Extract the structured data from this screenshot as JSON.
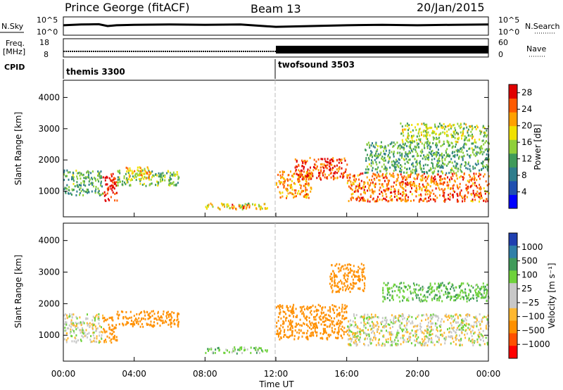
{
  "header": {
    "station": "Prince George (fitACF)",
    "beam": "Beam 13",
    "date": "20/Jan/2015"
  },
  "chart_data": [
    {
      "type": "line",
      "name": "sky-noise-strip",
      "left_label": "N.Sky",
      "right_label": "N.Search",
      "left_ticks": [
        "10^5",
        "10^0"
      ],
      "right_ticks": [
        "10^5",
        "10^0"
      ],
      "x_range_hours": [
        0,
        24
      ],
      "series": [
        {
          "values": [
            [
              0,
              0.55
            ],
            [
              1,
              0.6
            ],
            [
              2,
              0.62
            ],
            [
              2.5,
              0.5
            ],
            [
              3,
              0.55
            ],
            [
              4,
              0.58
            ],
            [
              6,
              0.6
            ],
            [
              8,
              0.58
            ],
            [
              10,
              0.6
            ],
            [
              12,
              0.45
            ],
            [
              14,
              0.5
            ],
            [
              16,
              0.55
            ],
            [
              18,
              0.58
            ],
            [
              20,
              0.55
            ],
            [
              22,
              0.58
            ],
            [
              24,
              0.6
            ]
          ]
        }
      ]
    },
    {
      "type": "line",
      "name": "frequency-nave-strip",
      "left_label": "Freq.",
      "left_unit": "[MHz]",
      "right_label": "Nave",
      "left_ticks": [
        "18",
        "8"
      ],
      "right_ticks": [
        "60",
        "0"
      ],
      "x_range_hours": [
        0,
        24
      ]
    },
    {
      "type": "text",
      "name": "cpid-strip",
      "label": "CPID",
      "segments": [
        {
          "start_hour": 0,
          "text": "themis 3300"
        },
        {
          "start_hour": 12,
          "text": "twofsound 3503"
        }
      ]
    },
    {
      "type": "heatmap",
      "name": "power-panel",
      "ylabel": "Slant Range [km]",
      "ylim": [
        180,
        4550
      ],
      "yticks": [
        "1000",
        "2000",
        "3000",
        "4000"
      ],
      "xlim_hours": [
        0,
        24
      ],
      "colorbar_label": "Power [dB]",
      "colorbar_ticks": [
        "4",
        "8",
        "12",
        "16",
        "20",
        "24",
        "28"
      ],
      "colorbar_range": [
        0,
        30
      ],
      "regions": [
        {
          "t0": 0.0,
          "t1": 2.2,
          "r0": 900,
          "r1": 1700,
          "value": 12
        },
        {
          "t0": 2.2,
          "t1": 3.0,
          "r0": 700,
          "r1": 1600,
          "value": 28
        },
        {
          "t0": 3.0,
          "t1": 6.5,
          "r0": 1200,
          "r1": 1700,
          "value": 14
        },
        {
          "t0": 3.5,
          "t1": 5.0,
          "r0": 1400,
          "r1": 1800,
          "value": 20
        },
        {
          "t0": 8.0,
          "t1": 11.5,
          "r0": 450,
          "r1": 650,
          "value": 18
        },
        {
          "t0": 9.5,
          "t1": 10.5,
          "r0": 450,
          "r1": 600,
          "value": 26
        },
        {
          "t0": 12.0,
          "t1": 14.0,
          "r0": 800,
          "r1": 1700,
          "value": 22
        },
        {
          "t0": 13.0,
          "t1": 16.0,
          "r0": 1400,
          "r1": 2100,
          "value": 26
        },
        {
          "t0": 16.0,
          "t1": 24.0,
          "r0": 700,
          "r1": 1600,
          "value": 24
        },
        {
          "t0": 17.0,
          "t1": 24.0,
          "r0": 1600,
          "r1": 2600,
          "value": 12
        },
        {
          "t0": 19.0,
          "t1": 24.0,
          "r0": 2600,
          "r1": 3200,
          "value": 16
        }
      ]
    },
    {
      "type": "heatmap",
      "name": "velocity-panel",
      "ylabel": "Slant Range [km]",
      "xlabel": "Time UT",
      "ylim": [
        180,
        4550
      ],
      "yticks": [
        "1000",
        "2000",
        "3000",
        "4000"
      ],
      "xticks": [
        "00:00",
        "04:00",
        "08:00",
        "12:00",
        "16:00",
        "20:00",
        "00:00"
      ],
      "xlim_hours": [
        0,
        24
      ],
      "colorbar_label": "Velocity [m s⁻¹]",
      "colorbar_ticks": [
        "1000",
        "500",
        "100",
        "25",
        "−25",
        "−100",
        "−500",
        "−1000"
      ],
      "regions": [
        {
          "t0": 0.0,
          "t1": 2.2,
          "r0": 800,
          "r1": 1700,
          "value": 0
        },
        {
          "t0": 2.2,
          "t1": 3.0,
          "r0": 800,
          "r1": 1600,
          "value": -150
        },
        {
          "t0": 3.0,
          "t1": 6.5,
          "r0": 1300,
          "r1": 1800,
          "value": -200
        },
        {
          "t0": 8.0,
          "t1": 11.5,
          "r0": 450,
          "r1": 650,
          "value": 60
        },
        {
          "t0": 12.0,
          "t1": 16.0,
          "r0": 900,
          "r1": 2000,
          "value": -200
        },
        {
          "t0": 15.0,
          "t1": 17.0,
          "r0": 2400,
          "r1": 3300,
          "value": -300
        },
        {
          "t0": 16.0,
          "t1": 24.0,
          "r0": 700,
          "r1": 1700,
          "value": 0
        },
        {
          "t0": 18.0,
          "t1": 24.0,
          "r0": 2100,
          "r1": 2700,
          "value": 80
        }
      ]
    }
  ],
  "colors": {
    "power_scale": [
      "#0000ff",
      "#1f4fb0",
      "#2e7d8c",
      "#3f9a5a",
      "#8fcf3a",
      "#f0e000",
      "#ffa000",
      "#ff5a00",
      "#e00000"
    ],
    "velocity_scale": [
      "#ff0000",
      "#ff5000",
      "#ff9000",
      "#ffb830",
      "#c8c8c8",
      "#c8c8c8",
      "#6fd23c",
      "#3f9a5a",
      "#2f7fa8",
      "#1f3fb0"
    ]
  }
}
